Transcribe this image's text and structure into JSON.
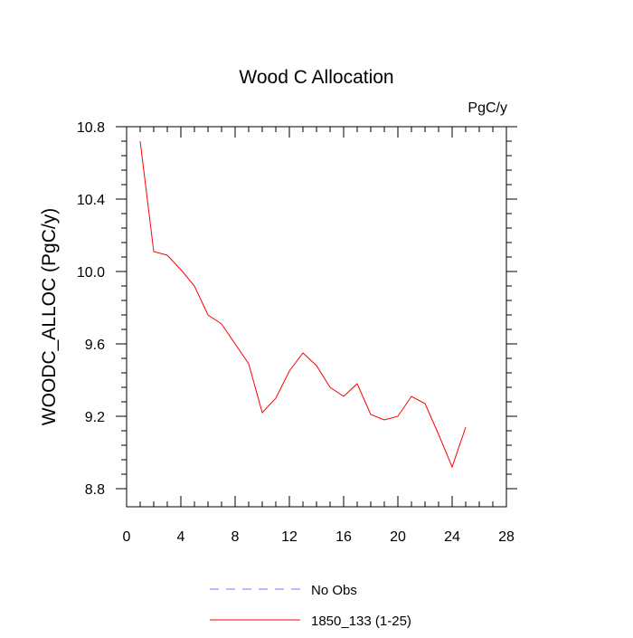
{
  "chart_data": {
    "type": "line",
    "title": "Wood C Allocation",
    "units_label": "PgC/y",
    "ylabel": "WOODC_ALLOC  (PgC/y)",
    "xlabel": "",
    "xlim": [
      0,
      28
    ],
    "ylim": [
      8.7,
      10.8
    ],
    "x_ticks": [
      0,
      4,
      8,
      12,
      16,
      20,
      24,
      28
    ],
    "x_tick_labels": [
      "0",
      "4",
      "8",
      "12",
      "16",
      "20",
      "24",
      "28"
    ],
    "y_ticks": [
      8.8,
      9.2,
      9.6,
      10.0,
      10.4,
      10.8
    ],
    "y_tick_labels": [
      "8.8",
      "9.2",
      "9.6",
      "10.0",
      "10.4",
      "10.8"
    ],
    "grid": false,
    "legend_position": "bottom",
    "series": [
      {
        "name": "1850_133 (1-25)",
        "color": "#ff0000",
        "dash": "solid",
        "x": [
          1,
          2,
          3,
          4,
          5,
          6,
          7,
          8,
          9,
          10,
          11,
          12,
          13,
          14,
          15,
          16,
          17,
          18,
          19,
          20,
          21,
          22,
          23,
          24,
          25
        ],
        "values": [
          10.72,
          10.11,
          10.09,
          10.01,
          9.92,
          9.76,
          9.71,
          9.6,
          9.49,
          9.22,
          9.3,
          9.45,
          9.55,
          9.48,
          9.36,
          9.31,
          9.38,
          9.21,
          9.18,
          9.2,
          9.31,
          9.27,
          9.1,
          8.92,
          9.14
        ]
      }
    ],
    "legend": [
      {
        "label": "No Obs",
        "color": "#7777ff",
        "dash": "dashed"
      },
      {
        "label": "1850_133 (1-25)",
        "color": "#ff0000",
        "dash": "solid"
      }
    ]
  }
}
